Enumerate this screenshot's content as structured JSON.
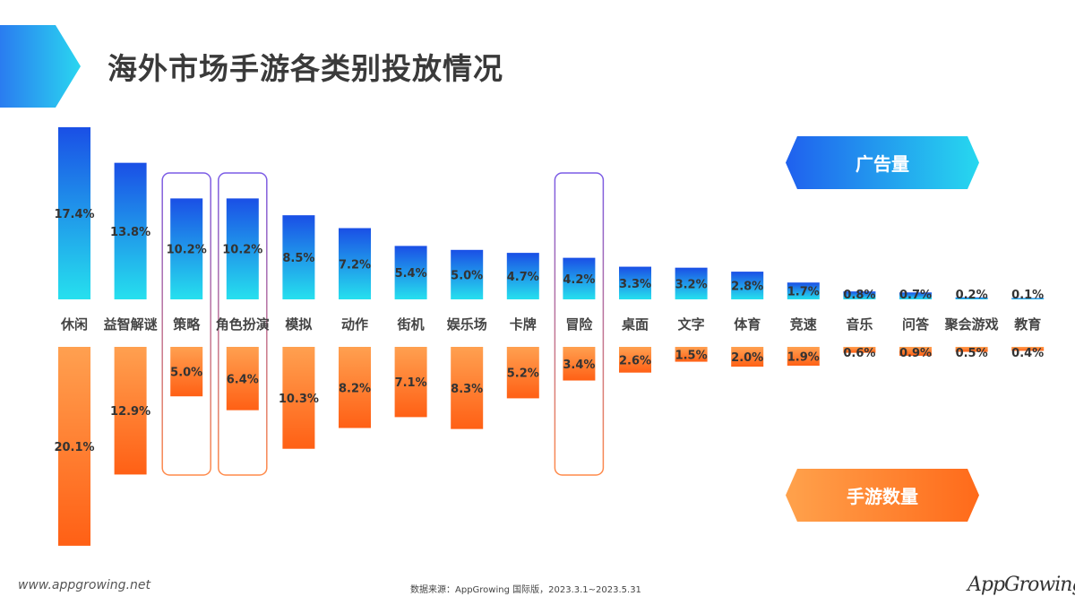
{
  "title": "海外市场手游各类别投放情况",
  "legend": {
    "ad_volume": "广告量",
    "game_count": "手游数量"
  },
  "footer": {
    "website": "www.appgrowing.net",
    "source": "数据来源：AppGrowing 国际版，2023.3.1~2023.5.31",
    "logo": "AppGrowing"
  },
  "colors": {
    "top_from": "#1a4fe6",
    "top_to": "#26e0ee",
    "bottom_from": "#ffa050",
    "bottom_to": "#ff6015",
    "highlight_from": "#7b5ce6",
    "highlight_to": "#ff8a4a"
  },
  "chart_data": {
    "type": "bar",
    "categories": [
      "休闲",
      "益智解谜",
      "策略",
      "角色扮演",
      "模拟",
      "动作",
      "街机",
      "娱乐场",
      "卡牌",
      "冒险",
      "桌面",
      "文字",
      "体育",
      "竞速",
      "音乐",
      "问答",
      "聚会游戏",
      "教育"
    ],
    "series": [
      {
        "name": "广告量",
        "values": [
          17.4,
          13.8,
          10.2,
          10.2,
          8.5,
          7.2,
          5.4,
          5.0,
          4.7,
          4.2,
          3.3,
          3.2,
          2.8,
          1.7,
          0.8,
          0.7,
          0.2,
          0.1
        ],
        "labels": [
          "17.4%",
          "13.8%",
          "10.2%",
          "10.2%",
          "8.5%",
          "7.2%",
          "5.4%",
          "5.0%",
          "4.7%",
          "4.2%",
          "3.3%",
          "3.2%",
          "2.8%",
          "1.7%",
          "0.8%",
          "0.7%",
          "0.2%",
          "0.1%"
        ]
      },
      {
        "name": "手游数量",
        "values": [
          20.1,
          12.9,
          5.0,
          6.4,
          10.3,
          8.2,
          7.1,
          8.3,
          5.2,
          3.4,
          2.6,
          1.5,
          2.0,
          1.9,
          0.6,
          0.9,
          0.5,
          0.4
        ],
        "labels": [
          "20.1%",
          "12.9%",
          "5.0%",
          "6.4%",
          "10.3%",
          "8.2%",
          "7.1%",
          "8.3%",
          "5.2%",
          "3.4%",
          "2.6%",
          "1.5%",
          "2.0%",
          "1.9%",
          "0.6%",
          "0.9%",
          "0.5%",
          "0.4%"
        ]
      }
    ],
    "highlighted": [
      "策略",
      "角色扮演",
      "冒险"
    ],
    "unit": "%"
  }
}
